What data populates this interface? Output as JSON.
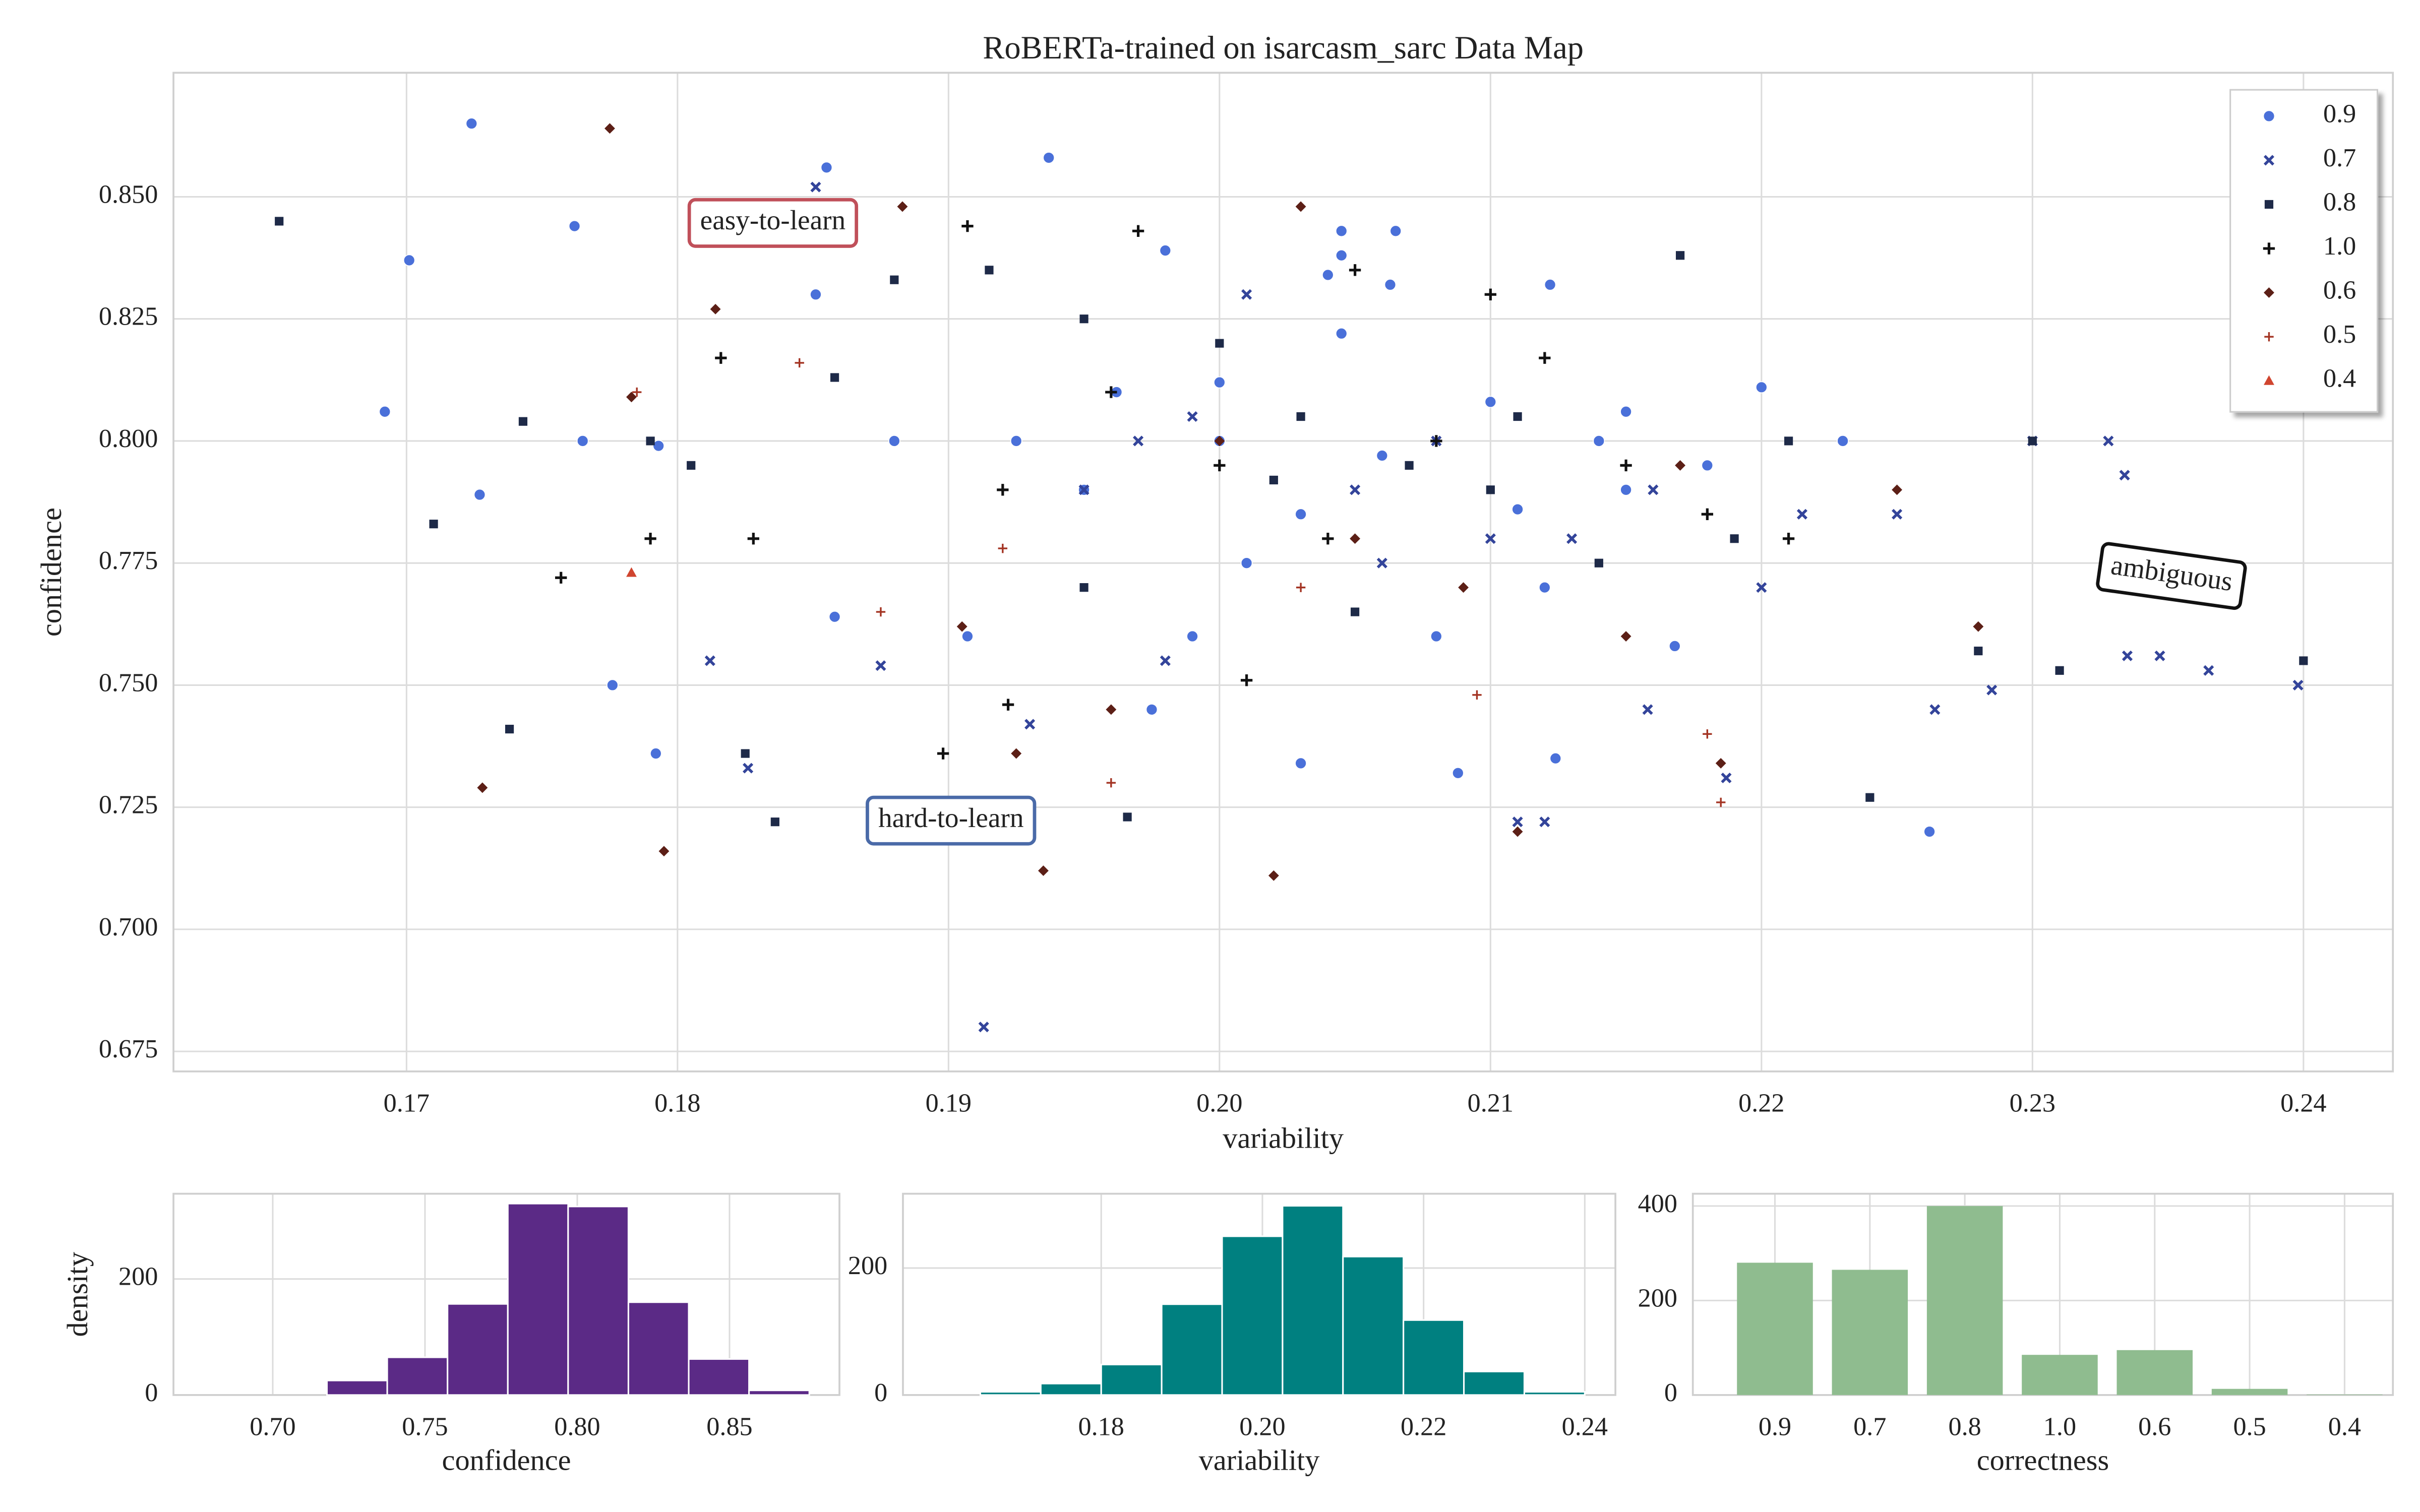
{
  "chart_data": [
    {
      "type": "scatter",
      "title": "RoBERTa-trained on isarcasm_sarc Data Map",
      "xlabel": "variability",
      "ylabel": "confidence",
      "xlim": [
        0.1614,
        0.2433
      ],
      "ylim": [
        0.6709,
        0.8754
      ],
      "xticks": [
        0.17,
        0.18,
        0.19,
        {
          "value": 0.2,
          "label": "0.20"
        },
        0.21,
        0.22,
        0.23,
        0.24
      ],
      "yticks": [
        0.675,
        {
          "value": 0.7,
          "label": "0.700"
        },
        0.725,
        {
          "value": 0.75,
          "label": "0.750"
        },
        0.775,
        {
          "value": 0.8,
          "label": "0.800"
        },
        0.825,
        {
          "value": 0.85,
          "label": "0.850"
        }
      ],
      "grid": true,
      "legend": "upper right",
      "annotations": [
        {
          "text": "easy-to-learn",
          "color": "#c0505a"
        },
        {
          "text": "hard-to-learn",
          "color": "#4a6aa8"
        },
        {
          "text": "ambiguous",
          "color": "#111111"
        }
      ],
      "series": [
        {
          "name": "0.9",
          "color": "#4a70d9",
          "marker": "o",
          "x": [
            0.1724,
            0.1701,
            0.1762,
            0.1692,
            0.1727,
            0.1765,
            0.1793,
            0.1776,
            0.1792,
            0.1855,
            0.1851,
            0.1937,
            0.1858,
            0.1925,
            0.198,
            0.204,
            0.2045,
            0.2045,
            0.2065,
            0.2063,
            0.2122,
            0.215,
            0.22,
            0.2262,
            0.188,
            0.1962,
            0.201,
            0.208,
            0.212,
            0.215,
            0.218,
            0.21,
            0.195,
            0.2,
            0.203,
            0.206,
            0.199,
            0.203,
            0.2088,
            0.2124,
            0.2168,
            0.223,
            0.1907,
            0.214,
            0.1975,
            0.211,
            0.2045,
            0.2
          ],
          "values": [
            0.865,
            0.837,
            0.844,
            0.806,
            0.789,
            0.8,
            0.799,
            0.75,
            0.736,
            0.856,
            0.83,
            0.858,
            0.764,
            0.8,
            0.839,
            0.834,
            0.838,
            0.843,
            0.843,
            0.832,
            0.832,
            0.806,
            0.811,
            0.72,
            0.8,
            0.81,
            0.775,
            0.76,
            0.77,
            0.79,
            0.795,
            0.808,
            0.79,
            0.8,
            0.785,
            0.797,
            0.76,
            0.734,
            0.732,
            0.735,
            0.758,
            0.8,
            0.76,
            0.8,
            0.745,
            0.786,
            0.822,
            0.812
          ]
        },
        {
          "name": "0.7",
          "color": "#33449a",
          "marker": "x",
          "x": [
            0.1851,
            0.1812,
            0.1826,
            0.1913,
            0.1875,
            0.197,
            0.201,
            0.21,
            0.2158,
            0.2187,
            0.2215,
            0.23,
            0.2328,
            0.2334,
            0.2398,
            0.2365,
            0.2347,
            0.2335,
            0.2264,
            0.2285,
            0.211,
            0.212,
            0.195,
            0.205,
            0.213,
            0.22,
            0.225,
            0.193,
            0.198,
            0.208,
            0.199,
            0.216,
            0.206
          ],
          "values": [
            0.852,
            0.755,
            0.733,
            0.68,
            0.754,
            0.8,
            0.83,
            0.78,
            0.745,
            0.731,
            0.785,
            0.8,
            0.8,
            0.793,
            0.75,
            0.753,
            0.756,
            0.756,
            0.745,
            0.749,
            0.722,
            0.722,
            0.79,
            0.79,
            0.78,
            0.77,
            0.785,
            0.742,
            0.755,
            0.8,
            0.805,
            0.79,
            0.775
          ]
        },
        {
          "name": "0.8",
          "color": "#1e2a48",
          "marker": "s",
          "x": [
            0.1653,
            0.171,
            0.1743,
            0.1738,
            0.1836,
            0.1825,
            0.179,
            0.1805,
            0.1858,
            0.188,
            0.1915,
            0.195,
            0.2,
            0.203,
            0.207,
            0.217,
            0.221,
            0.224,
            0.23,
            0.24,
            0.231,
            0.1966,
            0.21,
            0.214,
            0.219,
            0.228,
            0.202,
            0.195,
            0.205,
            0.211
          ],
          "values": [
            0.845,
            0.783,
            0.804,
            0.741,
            0.722,
            0.736,
            0.8,
            0.795,
            0.813,
            0.833,
            0.835,
            0.825,
            0.82,
            0.805,
            0.795,
            0.838,
            0.8,
            0.727,
            0.8,
            0.755,
            0.753,
            0.723,
            0.79,
            0.775,
            0.78,
            0.757,
            0.792,
            0.77,
            0.765,
            0.805
          ]
        },
        {
          "name": "1.0",
          "color": "#111111",
          "marker": "+",
          "x": [
            0.1757,
            0.179,
            0.1816,
            0.1828,
            0.1907,
            0.1898,
            0.1922,
            0.197,
            0.2,
            0.208,
            0.212,
            0.205,
            0.192,
            0.215,
            0.218,
            0.201,
            0.21,
            0.221,
            0.196,
            0.204
          ],
          "values": [
            0.772,
            0.78,
            0.817,
            0.78,
            0.844,
            0.736,
            0.746,
            0.843,
            0.795,
            0.8,
            0.817,
            0.835,
            0.79,
            0.795,
            0.785,
            0.751,
            0.83,
            0.78,
            0.81,
            0.78
          ]
        },
        {
          "name": "0.6",
          "color": "#5c1f16",
          "marker": "D",
          "x": [
            0.1775,
            0.1795,
            0.1728,
            0.1783,
            0.1814,
            0.1883,
            0.1935,
            0.202,
            0.203,
            0.211,
            0.2185,
            0.1905,
            0.196,
            0.205,
            0.215,
            0.225,
            0.228,
            0.1925,
            0.2,
            0.209,
            0.217
          ],
          "values": [
            0.864,
            0.716,
            0.729,
            0.809,
            0.827,
            0.848,
            0.712,
            0.711,
            0.848,
            0.72,
            0.734,
            0.762,
            0.745,
            0.78,
            0.76,
            0.79,
            0.762,
            0.736,
            0.8,
            0.77,
            0.795
          ]
        },
        {
          "name": "0.5",
          "color": "#a33322",
          "marker": "p",
          "x": [
            0.1845,
            0.1785,
            0.1875,
            0.196,
            0.2095,
            0.218,
            0.2185,
            0.192,
            0.203
          ],
          "values": [
            0.816,
            0.81,
            0.765,
            0.73,
            0.748,
            0.74,
            0.726,
            0.778,
            0.77
          ]
        },
        {
          "name": "0.4",
          "color": "#d0452f",
          "marker": "^",
          "x": [
            0.1783
          ],
          "values": [
            0.773
          ]
        }
      ]
    },
    {
      "type": "histogram",
      "xlabel": "confidence",
      "ylabel": "density",
      "color": "#5b2a86",
      "bins": [
        0.7178,
        0.7376,
        0.7574,
        0.7772,
        0.797,
        0.8168,
        0.8366,
        0.8564,
        0.8762
      ],
      "values": [
        25,
        65,
        157,
        330,
        325,
        160,
        62,
        8
      ],
      "xlim": [
        0.6674,
        0.8861
      ],
      "ylim": [
        0,
        347
      ],
      "xticks": [
        {
          "value": 0.7,
          "label": "0.70"
        },
        0.75,
        {
          "value": 0.8,
          "label": "0.80"
        },
        0.85
      ],
      "yticks": [
        0,
        200
      ],
      "grid": true
    },
    {
      "type": "histogram",
      "xlabel": "variability",
      "color": "#008080",
      "bins": [
        0.165,
        0.1725,
        0.18,
        0.1875,
        0.195,
        0.2025,
        0.21,
        0.2175,
        0.225,
        0.2325,
        0.24
      ],
      "values": [
        5,
        18,
        48,
        143,
        250,
        298,
        218,
        118,
        37,
        5
      ],
      "xlim": [
        0.1554,
        0.2438
      ],
      "ylim": [
        0,
        317
      ],
      "xticks": [
        0.18,
        {
          "value": 0.2,
          "label": "0.20"
        },
        0.22,
        0.24
      ],
      "yticks": [
        0,
        200
      ],
      "grid": true
    },
    {
      "type": "bar",
      "xlabel": "correctness",
      "color": "#8fbc8f",
      "categories": [
        "0.9",
        "0.7",
        "0.8",
        "1.0",
        "0.6",
        "0.5",
        "0.4"
      ],
      "values": [
        280,
        265,
        400,
        85,
        95,
        13,
        1
      ],
      "ylim": [
        0,
        426
      ],
      "yticks": [
        0,
        200,
        400
      ],
      "grid": true
    }
  ]
}
